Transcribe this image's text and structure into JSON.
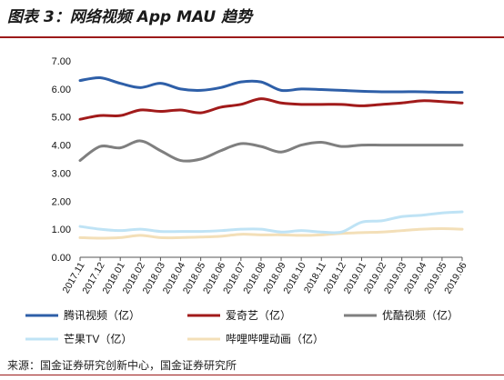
{
  "header": {
    "title": "图表 3：网络视频 App MAU 趋势"
  },
  "footer": {
    "source": "来源：国金证券研究创新中心，国金证券研究所"
  },
  "chart_data": {
    "type": "line",
    "title": "",
    "xlabel": "",
    "ylabel": "",
    "ylim": [
      0,
      7
    ],
    "yticks": [
      "0.00",
      "1.00",
      "2.00",
      "3.00",
      "4.00",
      "5.00",
      "6.00",
      "7.00"
    ],
    "grid": false,
    "legend_position": "bottom",
    "x": [
      "2017.11",
      "2017.12",
      "2018.01",
      "2018.02",
      "2018.03",
      "2018.04",
      "2018.05",
      "2018.06",
      "2018.07",
      "2018.08",
      "2018.09",
      "2018.10",
      "2018.11",
      "2018.12",
      "2019.01",
      "2019.02",
      "2019.03",
      "2019.04",
      "2019.05",
      "2019.06"
    ],
    "series": [
      {
        "name": "腾讯视频（亿）",
        "color": "#2e5fa8",
        "values": [
          6.3,
          6.4,
          6.2,
          6.05,
          6.2,
          6.0,
          5.95,
          6.05,
          6.25,
          6.25,
          5.95,
          6.0,
          5.98,
          5.95,
          5.92,
          5.9,
          5.9,
          5.9,
          5.88,
          5.88
        ]
      },
      {
        "name": "爱奇艺（亿）",
        "color": "#a11a1a",
        "values": [
          4.92,
          5.05,
          5.05,
          5.25,
          5.2,
          5.25,
          5.15,
          5.35,
          5.45,
          5.65,
          5.5,
          5.45,
          5.45,
          5.45,
          5.4,
          5.45,
          5.5,
          5.58,
          5.55,
          5.5
        ]
      },
      {
        "name": "优酷视频（亿）",
        "color": "#7f7f7f",
        "values": [
          3.45,
          3.95,
          3.9,
          4.15,
          3.8,
          3.45,
          3.5,
          3.8,
          4.05,
          3.95,
          3.75,
          4.0,
          4.1,
          3.95,
          4.0,
          4.0,
          4.0,
          4.0,
          4.0,
          4.0
        ]
      },
      {
        "name": "芒果TV（亿）",
        "color": "#bfe3f5",
        "values": [
          1.1,
          1.0,
          0.95,
          1.0,
          0.92,
          0.92,
          0.92,
          0.95,
          1.0,
          1.0,
          0.9,
          0.95,
          0.9,
          0.9,
          1.25,
          1.3,
          1.45,
          1.5,
          1.58,
          1.62
        ]
      },
      {
        "name": "哔哩哔哩动画（亿）",
        "color": "#f3dfb8",
        "values": [
          0.7,
          0.68,
          0.7,
          0.78,
          0.7,
          0.7,
          0.72,
          0.75,
          0.82,
          0.8,
          0.8,
          0.78,
          0.8,
          0.85,
          0.88,
          0.9,
          0.95,
          1.0,
          1.02,
          1.0
        ]
      }
    ]
  }
}
